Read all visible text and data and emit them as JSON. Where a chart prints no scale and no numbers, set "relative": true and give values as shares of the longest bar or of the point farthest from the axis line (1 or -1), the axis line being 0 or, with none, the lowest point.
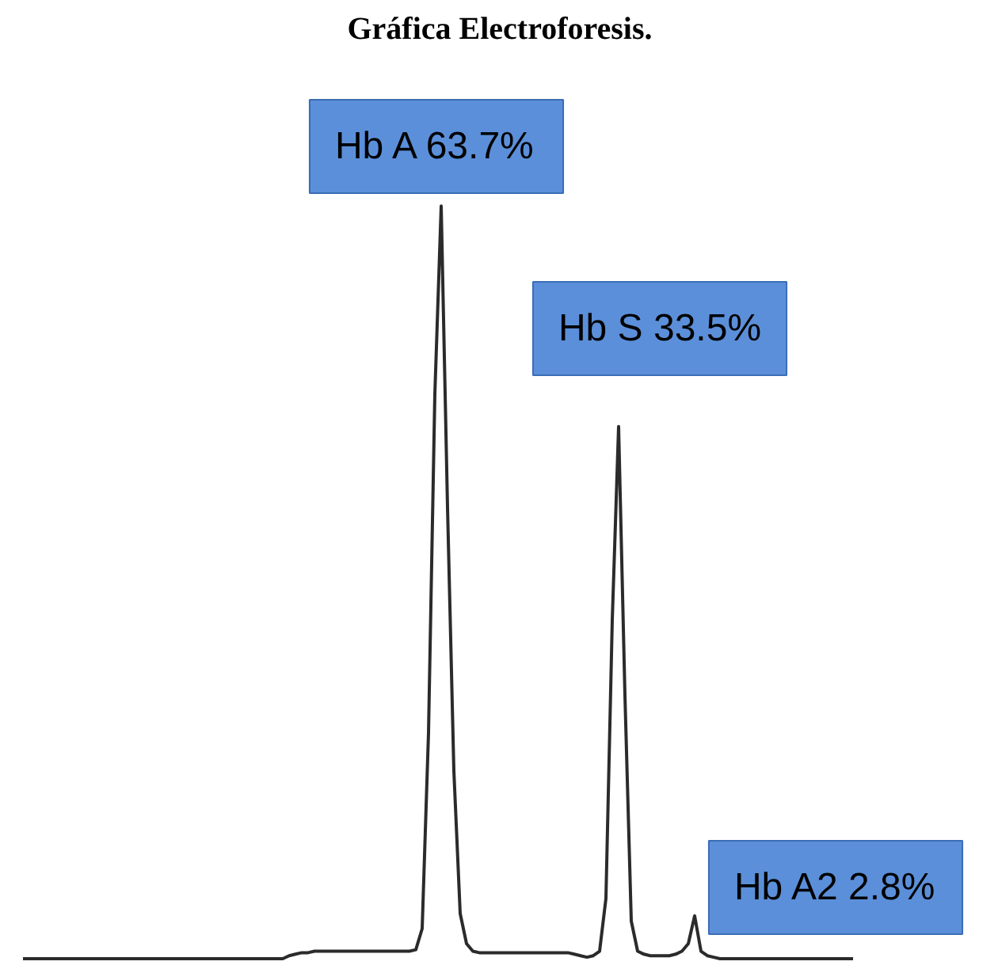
{
  "chart_data": {
    "type": "line",
    "title": "Gráfica Electroforesis.",
    "relative": true,
    "color": "#2b2b2b",
    "line_style": "solid",
    "categories": [
      null,
      null,
      null,
      null,
      null,
      null,
      null,
      null,
      null,
      null,
      null,
      null,
      null,
      null,
      null,
      null,
      null,
      null,
      null,
      null,
      null,
      null,
      null,
      null,
      null,
      null,
      null,
      null,
      null,
      null,
      null,
      null,
      null,
      null,
      null,
      null,
      null,
      null,
      null,
      null,
      null,
      null,
      null,
      null,
      null,
      null,
      null,
      null,
      null,
      null,
      null,
      null,
      null,
      null,
      null,
      null,
      null,
      null,
      null,
      null,
      null,
      null,
      null,
      null,
      null,
      null,
      null,
      null,
      null,
      null,
      null,
      null,
      null,
      null,
      null,
      null,
      null,
      null,
      null,
      null,
      null,
      null,
      null,
      null,
      null,
      null,
      null,
      null,
      null,
      null,
      null,
      null,
      null,
      null,
      null,
      null,
      null,
      null,
      null,
      null,
      null,
      null,
      null,
      null,
      null,
      null,
      null,
      null,
      null,
      null,
      null,
      null,
      null,
      null,
      null,
      null,
      null,
      null,
      null,
      null,
      null,
      null,
      null,
      null,
      null,
      null,
      null,
      null,
      null,
      null,
      null,
      null
    ],
    "values": [
      0,
      0,
      0,
      0,
      0,
      0,
      0,
      0,
      0,
      0,
      0,
      0,
      0,
      0,
      0,
      0,
      0,
      0,
      0,
      0,
      0,
      0,
      0,
      0,
      0,
      0,
      0,
      0,
      0,
      0,
      0,
      0,
      0,
      0,
      0,
      0,
      0,
      0,
      0,
      0,
      0,
      0,
      0.004,
      0.006,
      0.008,
      0.008,
      0.01,
      0.01,
      0.01,
      0.01,
      0.01,
      0.01,
      0.01,
      0.01,
      0.01,
      0.01,
      0.01,
      0.01,
      0.01,
      0.01,
      0.01,
      0.01,
      0.012,
      0.04,
      0.3,
      0.75,
      1.0,
      0.6,
      0.25,
      0.06,
      0.02,
      0.01,
      0.008,
      0.008,
      0.008,
      0.008,
      0.008,
      0.008,
      0.008,
      0.008,
      0.008,
      0.008,
      0.008,
      0.008,
      0.008,
      0.008,
      0.008,
      0.006,
      0.004,
      0.002,
      0.004,
      0.01,
      0.08,
      0.45,
      0.707,
      0.35,
      0.05,
      0.01,
      0.006,
      0.004,
      0.004,
      0.004,
      0.004,
      0.006,
      0.01,
      0.02,
      0.057,
      0.01,
      0.004,
      0.002,
      0,
      0,
      0,
      0,
      0,
      0,
      0,
      0,
      0,
      0,
      0,
      0,
      0,
      0,
      0,
      0,
      0,
      0,
      0,
      0,
      0,
      0
    ],
    "annotations": [
      "Hb A 63.7%",
      "Hb S 33.5%",
      "Hb A2 2.8%"
    ]
  }
}
